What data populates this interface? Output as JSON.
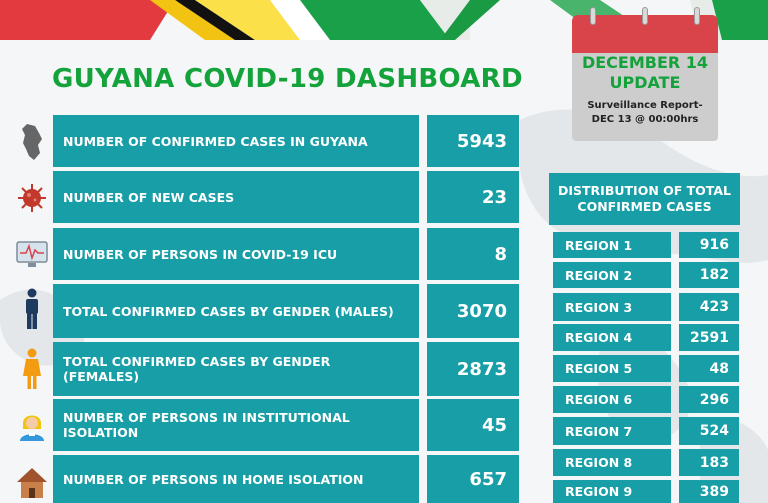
{
  "title": "GUYANA COVID-19 DASHBOARD",
  "calendar": {
    "month_day": "DECEMBER 14",
    "label": "UPDATE",
    "note_line1": "Surveillance Report-",
    "note_line2": "DEC 13 @ 00:00hrs"
  },
  "stats": [
    {
      "label": "NUMBER OF CONFIRMED CASES IN GUYANA",
      "value": "5943",
      "icon": "guyana-map-icon"
    },
    {
      "label": "NUMBER OF NEW CASES",
      "value": "23",
      "icon": "virus-icon"
    },
    {
      "label": "NUMBER OF PERSONS  IN COVID-19 ICU",
      "value": "8",
      "icon": "heart-monitor-icon"
    },
    {
      "label": "TOTAL CONFIRMED CASES BY GENDER (MALES)",
      "value": "3070",
      "icon": "male-icon"
    },
    {
      "label": "TOTAL CONFIRMED CASES BY GENDER (FEMALES)",
      "value": "2873",
      "icon": "female-icon"
    },
    {
      "label": "NUMBER OF PERSONS IN INSTITUTIONAL ISOLATION",
      "value": "45",
      "icon": "health-worker-icon"
    },
    {
      "label": "NUMBER OF PERSONS IN HOME ISOLATION",
      "value": "657",
      "icon": "house-icon"
    }
  ],
  "distribution": {
    "header": "DISTRIBUTION OF TOTAL CONFIRMED CASES",
    "regions": [
      {
        "name": "REGION 1",
        "value": "916"
      },
      {
        "name": "REGION 2",
        "value": "182"
      },
      {
        "name": "REGION 3",
        "value": "423"
      },
      {
        "name": "REGION 4",
        "value": "2591"
      },
      {
        "name": "REGION 5",
        "value": "48"
      },
      {
        "name": "REGION 6",
        "value": "296"
      },
      {
        "name": "REGION 7",
        "value": "524"
      },
      {
        "name": "REGION 8",
        "value": "183"
      },
      {
        "name": "REGION 9",
        "value": "389"
      }
    ]
  },
  "colors": {
    "teal": "#189ea6",
    "green": "#14a23b",
    "calendar_red": "#d9444a",
    "calendar_gray": "#cdcdcd"
  }
}
